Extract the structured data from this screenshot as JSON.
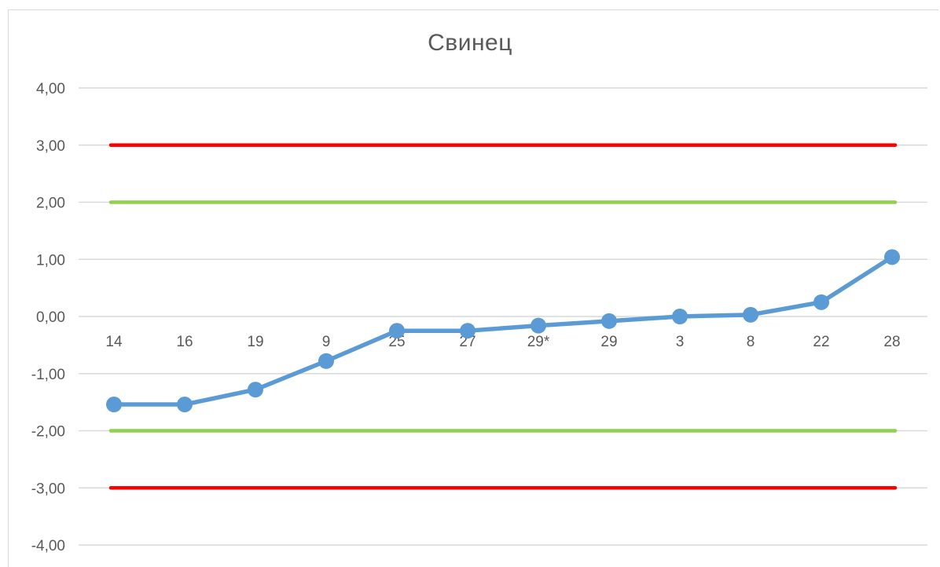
{
  "chart_data": {
    "type": "line",
    "title": "Свинец",
    "xlabel": "",
    "ylabel": "",
    "categories": [
      "14",
      "16",
      "19",
      "9",
      "25",
      "27",
      "29*",
      "29",
      "3",
      "8",
      "22",
      "28"
    ],
    "ylim": [
      -4,
      4
    ],
    "yticks": [
      4,
      3,
      2,
      1,
      0,
      -1,
      -2,
      -3,
      -4
    ],
    "ytick_labels": [
      "4,00",
      "3,00",
      "2,00",
      "1,00",
      "0,00",
      "-1,00",
      "-2,00",
      "-3,00",
      "-4,00"
    ],
    "grid": true,
    "legend": "none",
    "series": [
      {
        "values": [
          -1.54,
          -1.54,
          -1.28,
          -0.78,
          -0.25,
          -0.25,
          -0.16,
          -0.08,
          0.0,
          0.03,
          0.25,
          1.04
        ],
        "color": "#5B9BD5",
        "marker": "circle"
      }
    ],
    "reference_lines": [
      {
        "value": 3,
        "color": "#FF0000"
      },
      {
        "value": 2,
        "color": "#92D050"
      },
      {
        "value": -2,
        "color": "#92D050"
      },
      {
        "value": -3,
        "color": "#FF0000"
      }
    ]
  }
}
